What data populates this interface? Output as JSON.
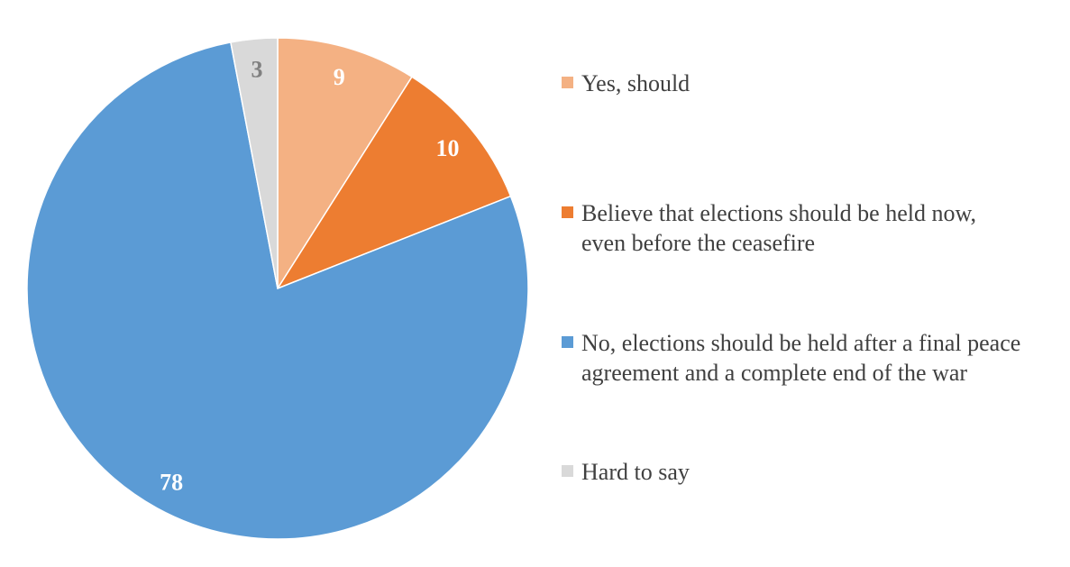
{
  "chart_data": {
    "type": "pie",
    "title": "",
    "slices": [
      {
        "label": "Yes, should",
        "value": 9,
        "color": "#F4B183",
        "label_color": "#FFFFFF"
      },
      {
        "label": "Believe that elections should be held now, even before the ceasefire",
        "value": 10,
        "color": "#ED7D31",
        "label_color": "#FFFFFF"
      },
      {
        "label": "No, elections should be held after a final peace agreement and a complete end of the war",
        "value": 78,
        "color": "#5B9BD5",
        "label_color": "#FFFFFF"
      },
      {
        "label": "Hard to say",
        "value": 3,
        "color": "#D9D9D9",
        "label_color": "#808080"
      }
    ],
    "legend_position": "right",
    "start_angle": "top, clockwise"
  }
}
